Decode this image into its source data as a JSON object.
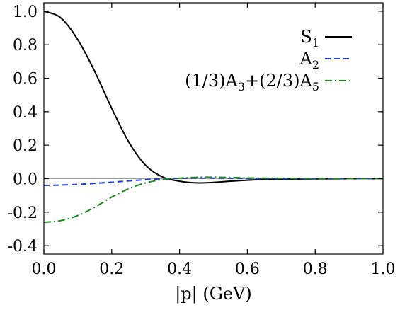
{
  "chart_data": {
    "type": "line",
    "title": "",
    "xlabel": "|p| (GeV)",
    "ylabel": "",
    "xlim": [
      0.0,
      1.0
    ],
    "ylim": [
      -0.45,
      1.05
    ],
    "xticks": [
      0.0,
      0.2,
      0.4,
      0.6,
      0.8,
      1.0
    ],
    "xtick_labels": [
      "0.0",
      "0.2",
      "0.4",
      "0.6",
      "0.8",
      "1.0"
    ],
    "yticks": [
      -0.4,
      -0.2,
      0.0,
      0.2,
      0.4,
      0.6,
      0.8,
      1.0
    ],
    "ytick_labels": [
      "-0.4",
      "-0.2",
      "0.0",
      "0.2",
      "0.4",
      "0.6",
      "0.8",
      "1.0"
    ],
    "zero_line": true,
    "grid": false,
    "legend_position": "top-right",
    "x": [
      0.0,
      0.05,
      0.1,
      0.15,
      0.2,
      0.25,
      0.3,
      0.35,
      0.4,
      0.45,
      0.5,
      0.55,
      0.6,
      0.65,
      0.7,
      0.75,
      0.8,
      0.85,
      0.9,
      0.95,
      1.0
    ],
    "series": [
      {
        "name": "S1",
        "legend_base": "S",
        "legend_sub": "1",
        "color": "#000000",
        "dash": "solid",
        "values": [
          1.0,
          0.96,
          0.83,
          0.64,
          0.42,
          0.22,
          0.08,
          0.01,
          -0.015,
          -0.025,
          -0.022,
          -0.015,
          -0.009,
          -0.005,
          -0.003,
          -0.002,
          -0.001,
          -0.001,
          0.0,
          0.0,
          0.0
        ]
      },
      {
        "name": "A2",
        "legend_base": "A",
        "legend_sub": "2",
        "color": "#1f3fd8",
        "dash": "dashed",
        "values": [
          -0.04,
          -0.038,
          -0.034,
          -0.028,
          -0.021,
          -0.013,
          -0.006,
          -0.001,
          0.002,
          0.003,
          0.003,
          0.002,
          0.001,
          0.001,
          0.0,
          0.0,
          0.0,
          0.0,
          0.0,
          0.0,
          0.0
        ]
      },
      {
        "name": "(1/3)A3+(2/3)A5",
        "legend_parts": [
          "(1/3)A",
          "3",
          "+(2/3)A",
          "5"
        ],
        "color": "#1a8a1a",
        "dash": "dashdot",
        "values": [
          -0.26,
          -0.25,
          -0.22,
          -0.17,
          -0.11,
          -0.06,
          -0.025,
          -0.006,
          0.003,
          0.008,
          0.009,
          0.007,
          0.005,
          0.003,
          0.002,
          0.001,
          0.001,
          0.0,
          0.0,
          0.0,
          0.0
        ]
      }
    ]
  }
}
